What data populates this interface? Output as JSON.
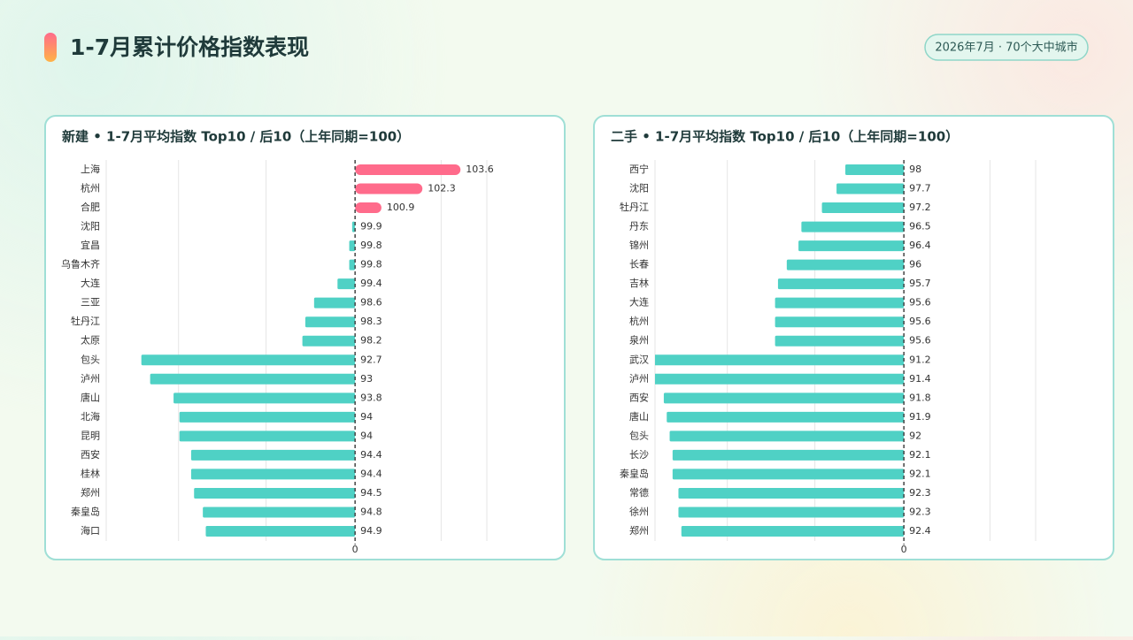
{
  "header": {
    "title": "1-7月累计价格指数表现",
    "badge": "2026年7月 · 70个大中城市"
  },
  "chart_data": [
    {
      "type": "bar",
      "orientation": "horizontal",
      "title": "新建 • 1-7月平均指数 Top10 / 后10（上年同期=100）",
      "categories": [
        "上海",
        "杭州",
        "合肥",
        "沈阳",
        "宜昌",
        "乌鲁木齐",
        "大连",
        "三亚",
        "牡丹江",
        "太原",
        "包头",
        "泸州",
        "唐山",
        "北海",
        "昆明",
        "西安",
        "桂林",
        "郑州",
        "秦皇岛",
        "海口"
      ],
      "values": [
        103.6,
        102.3,
        100.9,
        99.9,
        99.8,
        99.8,
        99.4,
        98.6,
        98.3,
        98.2,
        92.7,
        93.0,
        93.8,
        94.0,
        94.0,
        94.4,
        94.4,
        94.5,
        94.8,
        94.9
      ],
      "baseline": 100,
      "color": "#4fd1c5",
      "highlight_color": "#ff6b8b",
      "xlim": [
        91.5,
        104.5
      ],
      "xticks": [
        {
          "value": 100,
          "label": "0"
        }
      ]
    },
    {
      "type": "bar",
      "orientation": "horizontal",
      "title": "二手 • 1-7月平均指数 Top10 / 后10（上年同期=100）",
      "categories": [
        "西宁",
        "沈阳",
        "牡丹江",
        "丹东",
        "锦州",
        "长春",
        "吉林",
        "大连",
        "杭州",
        "泉州",
        "武汉",
        "泸州",
        "西安",
        "唐山",
        "包头",
        "长沙",
        "秦皇岛",
        "常德",
        "徐州",
        "郑州"
      ],
      "values": [
        98.0,
        97.7,
        97.2,
        96.5,
        96.4,
        96.0,
        95.7,
        95.6,
        95.6,
        95.6,
        91.2,
        91.4,
        91.8,
        91.9,
        92.0,
        92.1,
        92.1,
        92.3,
        92.3,
        92.4
      ],
      "baseline": 100,
      "color": "#4fd1c5",
      "highlight_color": "#ff6b8b",
      "xlim": [
        91.5,
        104.5
      ],
      "xticks": [
        {
          "value": 100,
          "label": "0"
        }
      ]
    }
  ]
}
